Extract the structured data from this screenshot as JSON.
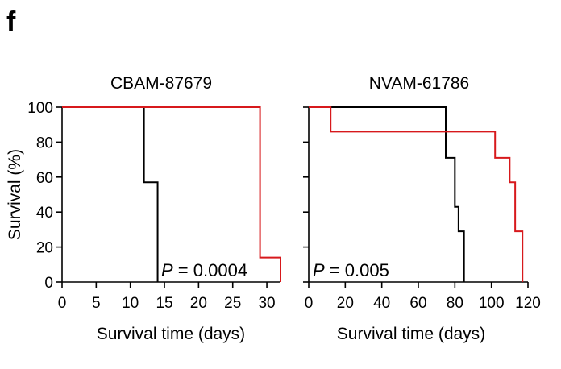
{
  "panel_label": "f",
  "chart_data": [
    {
      "type": "line",
      "title": "CBAM-87679",
      "xlabel": "Survival time (days)",
      "ylabel": "Survival (%)",
      "xlim": [
        0,
        32
      ],
      "ylim": [
        0,
        100
      ],
      "xticks": [
        0,
        5,
        10,
        15,
        20,
        25,
        30
      ],
      "yticks": [
        0,
        20,
        40,
        60,
        80,
        100
      ],
      "annotation": {
        "italic": "P",
        "text": " = 0.0004"
      },
      "series": [
        {
          "color": "#000000",
          "x": [
            0,
            12,
            12,
            14,
            14
          ],
          "y": [
            100,
            100,
            57,
            57,
            0
          ]
        },
        {
          "color": "#d7191c",
          "x": [
            0,
            29,
            29,
            32,
            32
          ],
          "y": [
            100,
            100,
            14,
            14,
            0
          ]
        }
      ]
    },
    {
      "type": "line",
      "title": "NVAM-61786",
      "xlabel": "Survival time (days)",
      "ylabel": "",
      "xlim": [
        0,
        120
      ],
      "ylim": [
        0,
        100
      ],
      "xticks": [
        0,
        20,
        40,
        60,
        80,
        100,
        120
      ],
      "yticks": [
        0,
        20,
        40,
        60,
        80,
        100
      ],
      "annotation": {
        "italic": "P",
        "text": " = 0.005"
      },
      "series": [
        {
          "color": "#000000",
          "x": [
            0,
            75,
            75,
            80,
            80,
            82,
            82,
            83,
            83,
            85,
            85
          ],
          "y": [
            100,
            100,
            71,
            71,
            43,
            43,
            29,
            29,
            29,
            29,
            0
          ]
        },
        {
          "color": "#d7191c",
          "x": [
            0,
            12,
            12,
            102,
            102,
            110,
            110,
            113,
            113,
            117,
            117
          ],
          "y": [
            100,
            100,
            86,
            86,
            71,
            71,
            57,
            57,
            29,
            29,
            0
          ]
        }
      ]
    }
  ]
}
